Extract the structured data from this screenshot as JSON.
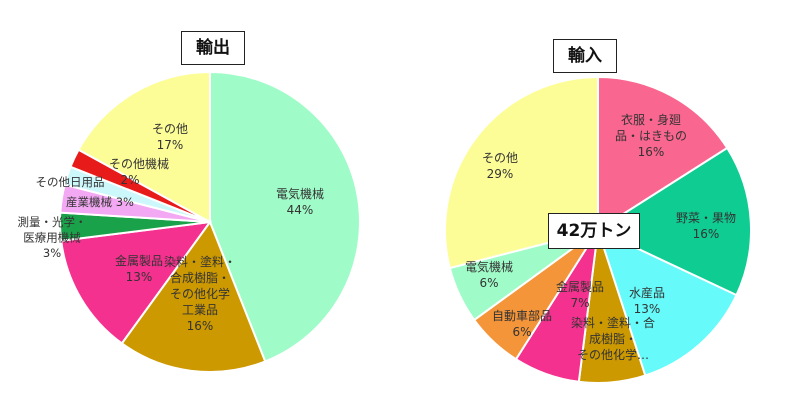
{
  "chart_data": [
    {
      "type": "pie",
      "title": "輸出",
      "slices": [
        {
          "label": "電気機械",
          "value": 44,
          "pct": "44%",
          "color": "#9ffcc8"
        },
        {
          "label": "染料・塗料・合成樹脂・その他化学工業品",
          "value": 16,
          "pct": "16%",
          "color": "#cc9900"
        },
        {
          "label": "金属製品",
          "value": 13,
          "pct": "13%",
          "color": "#f5318f"
        },
        {
          "label": "測量・光学・医療用機械",
          "value": 3,
          "pct": "3%",
          "color": "#1aa24a"
        },
        {
          "label": "産業機械",
          "value": 3,
          "pct": "3%",
          "color": "#f3a8f3"
        },
        {
          "label": "その他日用品",
          "value": 2,
          "pct": "",
          "color": "#ccf7fb"
        },
        {
          "label": "その他機械",
          "value": 2,
          "pct": "2%",
          "color": "#e81b1b"
        },
        {
          "label": "その他",
          "value": 17,
          "pct": "17%",
          "color": "#fdfd98"
        }
      ]
    },
    {
      "type": "pie",
      "title": "輸入",
      "center_label": "42万トン",
      "slices": [
        {
          "label": "衣服・身廻品・はきもの",
          "value": 16,
          "pct": "16%",
          "color": "#f9668f"
        },
        {
          "label": "野菜・果物",
          "value": 16,
          "pct": "16%",
          "color": "#0fcc92"
        },
        {
          "label": "水産品",
          "value": 13,
          "pct": "13%",
          "color": "#66fafa"
        },
        {
          "label": "染料・塗料・合成樹脂・その他化学…",
          "value": 7,
          "pct": "",
          "color": "#cc9900"
        },
        {
          "label": "金属製品",
          "value": 7,
          "pct": "7%",
          "color": "#f5318f"
        },
        {
          "label": "自動車部品",
          "value": 6,
          "pct": "6%",
          "color": "#f5953a"
        },
        {
          "label": "電気機械",
          "value": 6,
          "pct": "6%",
          "color": "#9ffcc8"
        },
        {
          "label": "その他",
          "value": 29,
          "pct": "29%",
          "color": "#fdfd98"
        }
      ]
    }
  ]
}
